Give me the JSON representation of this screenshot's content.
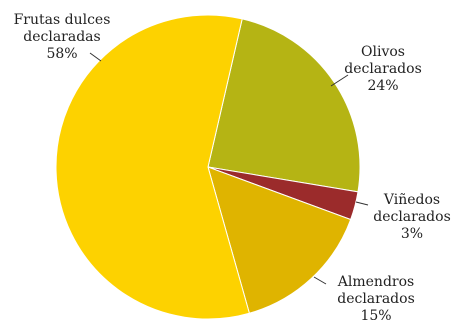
{
  "chart_data": {
    "type": "pie",
    "title": "",
    "slices": [
      {
        "name": "Olivos declarados",
        "label_lines": [
          "Olivos",
          "declarados",
          "24%"
        ],
        "value": 24,
        "color": "#b5b414"
      },
      {
        "name": "Viñedos declarados",
        "label_lines": [
          "Viñedos",
          "declarados",
          "3%"
        ],
        "value": 3,
        "color": "#9b2b2b"
      },
      {
        "name": "Almendros declarados",
        "label_lines": [
          "Almendros",
          "declarados",
          "15%"
        ],
        "value": 15,
        "color": "#dfb400"
      },
      {
        "name": "Frutas dulces declaradas",
        "label_lines": [
          "Frutas dulces",
          "declaradas",
          "58%"
        ],
        "value": 58,
        "color": "#fdd200"
      }
    ],
    "legend": "none"
  }
}
